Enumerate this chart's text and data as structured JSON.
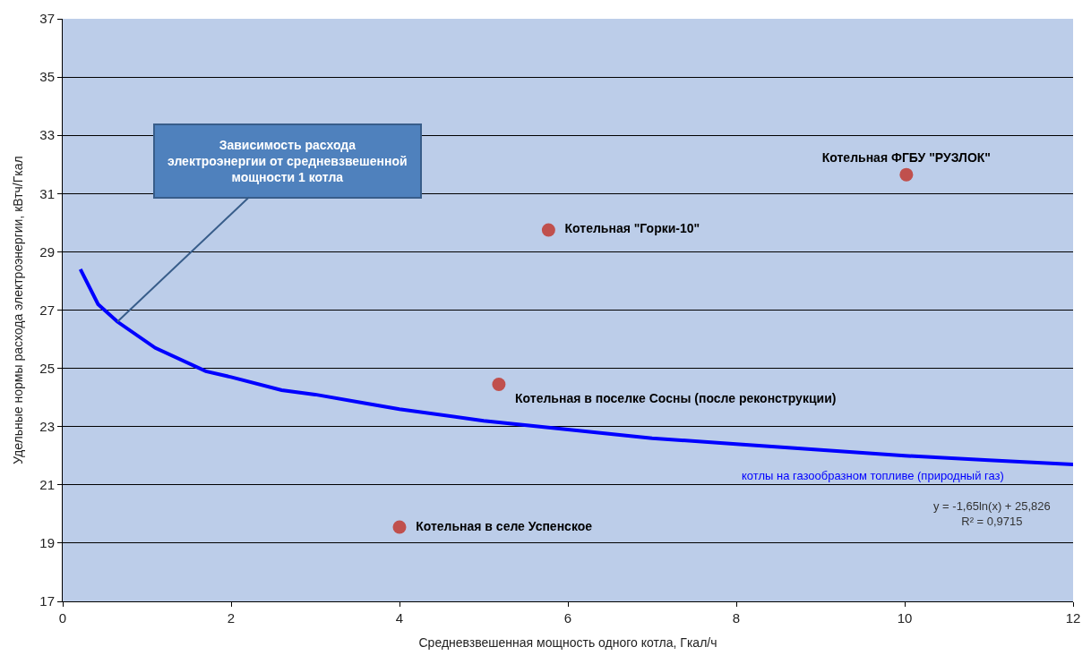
{
  "chart_data": {
    "type": "scatter",
    "xlabel": "Средневзвешенная мощность одного котла, Гкал/ч",
    "ylabel": "Удельные нормы расхода электроэнергии, кВтч/Гкал",
    "xlim": [
      0,
      12
    ],
    "xticks": [
      0,
      2,
      4,
      6,
      8,
      10,
      12
    ],
    "ylim": [
      17,
      37
    ],
    "yticks": [
      17,
      19,
      21,
      23,
      25,
      27,
      29,
      31,
      33,
      35,
      37
    ],
    "grid": "y",
    "legend": false,
    "series": [
      {
        "type": "line",
        "name": "котлы на газообразном топливе (природный газ)",
        "color": "#0000ff",
        "marker": "none",
        "line_style": "solid",
        "x": [
          0.21,
          0.42,
          0.65,
          1.1,
          1.7,
          2.0,
          2.6,
          3.0,
          3.6,
          4.0,
          5.0,
          6.0,
          7.0,
          8.0,
          9.0,
          10.0,
          11.0,
          12.0
        ],
        "values": [
          28.4,
          27.2,
          26.6,
          25.7,
          24.9,
          24.7,
          24.25,
          24.1,
          23.8,
          23.6,
          23.2,
          22.9,
          22.6,
          22.4,
          22.2,
          22.0,
          21.85,
          21.7
        ]
      },
      {
        "color": "#c0504d",
        "marker": "circle",
        "x": [
          4.0,
          5.18,
          5.77,
          10.02
        ],
        "values": [
          19.55,
          24.45,
          29.75,
          31.65
        ],
        "value_labels": [
          "Котельная в селе Успенское",
          "Котельная в поселке Сосны (после реконструкции)",
          "Котельная \"Горки-10\"",
          "Котельная ФГБУ \"РУЗЛОК\""
        ]
      }
    ],
    "annotations": [
      {
        "text": "Зависимость расхода\nэлектроэнергии от средневзвешенной\nмощности 1 котла",
        "x": 0.65,
        "y": 26.6
      },
      "y = -1,65ln(x) + 25,826\nR² = 0,9715"
    ]
  }
}
